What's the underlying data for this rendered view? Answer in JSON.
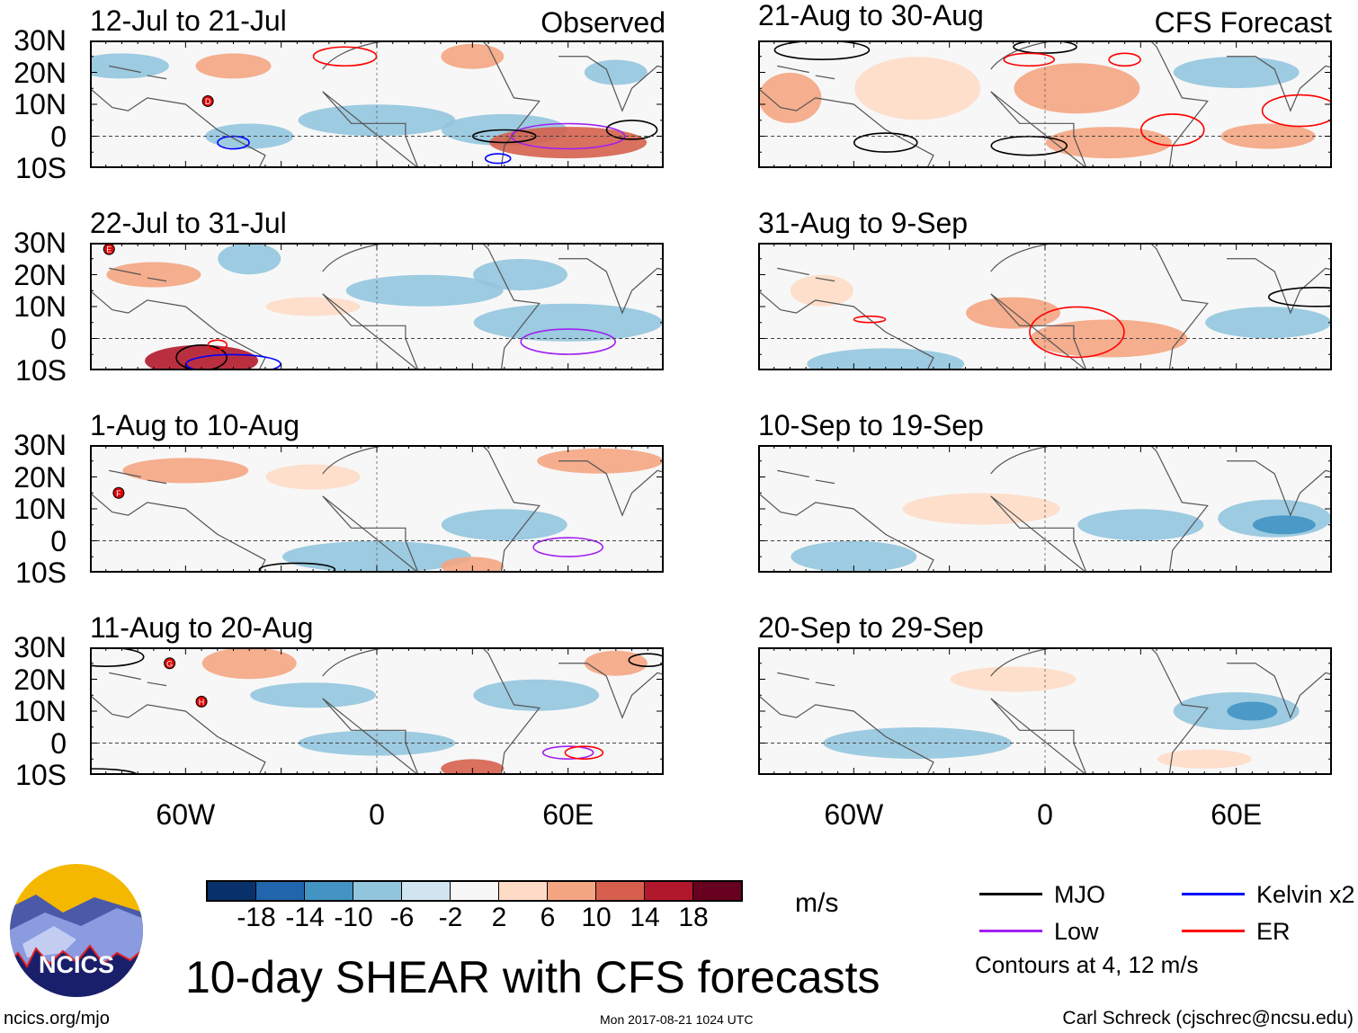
{
  "left_column": {
    "corner_label": "Observed",
    "panels": [
      {
        "title": "12-Jul to 21-Jul"
      },
      {
        "title": "22-Jul to 31-Jul"
      },
      {
        "title": "1-Aug to 10-Aug"
      },
      {
        "title": "11-Aug to 20-Aug"
      }
    ]
  },
  "right_column": {
    "corner_label": "CFS Forecast",
    "panels": [
      {
        "title": "21-Aug to 30-Aug"
      },
      {
        "title": "31-Aug to 9-Sep"
      },
      {
        "title": "10-Sep to 19-Sep"
      },
      {
        "title": "20-Sep to 29-Sep"
      }
    ]
  },
  "y_axis_labels": [
    "30N",
    "20N",
    "10N",
    "0",
    "10S"
  ],
  "x_axis_labels": [
    "60W",
    "0",
    "60E"
  ],
  "storm_markers": [
    "D",
    "E",
    "F",
    "G",
    "H"
  ],
  "colorbar": {
    "colors": [
      "#08306b",
      "#2166ac",
      "#4393c3",
      "#92c5de",
      "#d1e5f0",
      "#f7f7f7",
      "#fddbc7",
      "#f4a582",
      "#d6604d",
      "#b2182b",
      "#67001f"
    ],
    "labels": [
      "-18",
      "-14",
      "-10",
      "-6",
      "-2",
      "2",
      "6",
      "10",
      "14",
      "18"
    ],
    "units": "m/s"
  },
  "legend": {
    "items": [
      {
        "label": "MJO",
        "color": "#000000"
      },
      {
        "label": "Kelvin x2",
        "color": "#0000ff"
      },
      {
        "label": "Low",
        "color": "#a020f0"
      },
      {
        "label": "ER",
        "color": "#ff0000"
      }
    ],
    "contours_note": "Contours at 4, 12 m/s"
  },
  "title": "10-day SHEAR with CFS forecasts",
  "logo": {
    "text": "NCICS"
  },
  "footer": {
    "url": "ncics.org/mjo",
    "timestamp": "Mon 2017-08-21 1024 UTC",
    "credit": "Carl Schreck (cjschrec@ncsu.edu)"
  }
}
